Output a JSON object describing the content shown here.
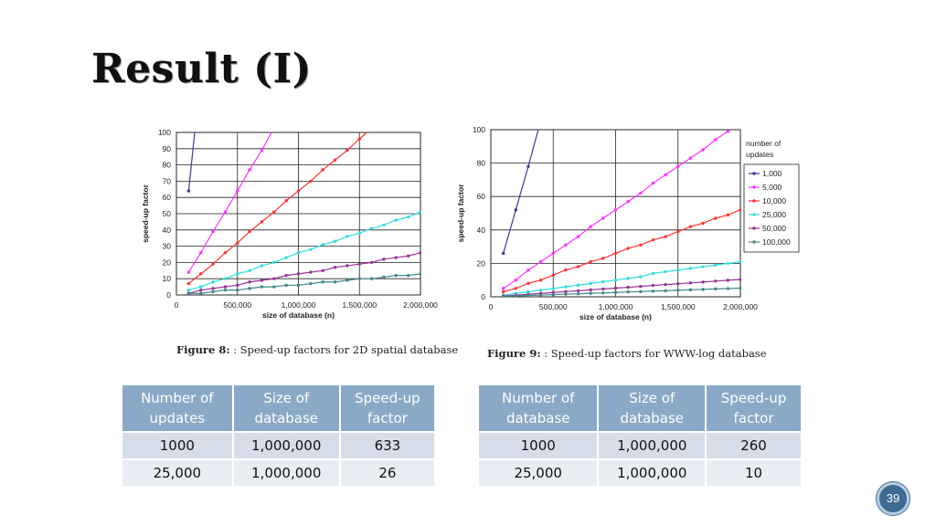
{
  "slide": {
    "title": "Result (I)",
    "page_number": "39"
  },
  "figure8": {
    "caption_bold": "Figure 8:",
    "caption_text": ": Speed-up factors for 2D spatial database"
  },
  "figure9": {
    "caption_bold": "Figure 9:",
    "caption_text": ": Speed-up factors for WWW-log database"
  },
  "chart_data": [
    {
      "type": "line",
      "xlabel": "size of database (n)",
      "ylabel": "speed-up factor",
      "xlim": [
        0,
        2000000
      ],
      "ylim": [
        0,
        100
      ],
      "xticks": [
        0,
        500000,
        1000000,
        1500000,
        2000000
      ],
      "xtick_labels": [
        "0",
        "500,000",
        "1,000,000",
        "1,500,000",
        "2,000,000"
      ],
      "yticks": [
        0,
        10,
        20,
        30,
        40,
        50,
        60,
        70,
        80,
        90,
        100
      ],
      "ytick_labels": [
        "0",
        "10",
        "20",
        "30",
        "40",
        "50",
        "60",
        "70",
        "80",
        "90",
        "100"
      ],
      "grid": true,
      "series": [
        {
          "color": "#3b3b9a",
          "values": [
            [
              100000,
              64
            ],
            [
              150000,
              100
            ]
          ]
        },
        {
          "color": "#ff33ff",
          "values": [
            [
              100000,
              14
            ],
            [
              200000,
              26
            ],
            [
              300000,
              39
            ],
            [
              400000,
              51
            ],
            [
              500000,
              64
            ],
            [
              600000,
              77
            ],
            [
              700000,
              89
            ],
            [
              780000,
              100
            ]
          ]
        },
        {
          "color": "#ff3333",
          "values": [
            [
              100000,
              7
            ],
            [
              200000,
              13
            ],
            [
              300000,
              19
            ],
            [
              400000,
              26
            ],
            [
              500000,
              32
            ],
            [
              600000,
              39
            ],
            [
              700000,
              45
            ],
            [
              800000,
              51
            ],
            [
              900000,
              58
            ],
            [
              1000000,
              64
            ],
            [
              1100000,
              70
            ],
            [
              1200000,
              77
            ],
            [
              1300000,
              83
            ],
            [
              1400000,
              89
            ],
            [
              1500000,
              96
            ],
            [
              1560000,
              100
            ]
          ]
        },
        {
          "color": "#33dddd",
          "values": [
            [
              100000,
              3
            ],
            [
              200000,
              5
            ],
            [
              300000,
              8
            ],
            [
              400000,
              10
            ],
            [
              500000,
              13
            ],
            [
              600000,
              15
            ],
            [
              700000,
              18
            ],
            [
              800000,
              20
            ],
            [
              900000,
              23
            ],
            [
              1000000,
              26
            ],
            [
              1100000,
              28
            ],
            [
              1200000,
              31
            ],
            [
              1300000,
              33
            ],
            [
              1400000,
              36
            ],
            [
              1500000,
              38
            ],
            [
              1600000,
              41
            ],
            [
              1700000,
              43
            ],
            [
              1800000,
              46
            ],
            [
              1900000,
              48
            ],
            [
              2000000,
              51
            ]
          ]
        },
        {
          "color": "#993399",
          "values": [
            [
              100000,
              1
            ],
            [
              200000,
              3
            ],
            [
              300000,
              4
            ],
            [
              400000,
              5
            ],
            [
              500000,
              6
            ],
            [
              600000,
              8
            ],
            [
              700000,
              9
            ],
            [
              800000,
              10
            ],
            [
              900000,
              12
            ],
            [
              1000000,
              13
            ],
            [
              1100000,
              14
            ],
            [
              1200000,
              15
            ],
            [
              1300000,
              17
            ],
            [
              1400000,
              18
            ],
            [
              1500000,
              19
            ],
            [
              1600000,
              20
            ],
            [
              1700000,
              22
            ],
            [
              1800000,
              23
            ],
            [
              1900000,
              24
            ],
            [
              2000000,
              26
            ]
          ]
        },
        {
          "color": "#448888",
          "values": [
            [
              100000,
              1
            ],
            [
              200000,
              1
            ],
            [
              300000,
              2
            ],
            [
              400000,
              3
            ],
            [
              500000,
              3
            ],
            [
              600000,
              4
            ],
            [
              700000,
              5
            ],
            [
              800000,
              5
            ],
            [
              900000,
              6
            ],
            [
              1000000,
              6
            ],
            [
              1100000,
              7
            ],
            [
              1200000,
              8
            ],
            [
              1300000,
              8
            ],
            [
              1400000,
              9
            ],
            [
              1500000,
              10
            ],
            [
              1600000,
              10
            ],
            [
              1700000,
              11
            ],
            [
              1800000,
              12
            ],
            [
              1900000,
              12
            ],
            [
              2000000,
              13
            ]
          ]
        }
      ]
    },
    {
      "type": "line",
      "xlabel": "size of database (n)",
      "ylabel": "speed-up factor",
      "xlim": [
        0,
        2000000
      ],
      "ylim": [
        0,
        100
      ],
      "xticks": [
        0,
        500000,
        1000000,
        1500000,
        2000000
      ],
      "xtick_labels": [
        "0",
        "500,000",
        "1,000,000",
        "1,500,000",
        "2,000,000"
      ],
      "yticks": [
        0,
        20,
        40,
        60,
        80,
        100
      ],
      "ytick_labels": [
        "0",
        "20",
        "40",
        "60",
        "80",
        "100"
      ],
      "grid": true,
      "legend_title": "number of updates",
      "legend_position": "right",
      "series": [
        {
          "name": "1,000",
          "color": "#3b3b9a",
          "values": [
            [
              100000,
              26
            ],
            [
              200000,
              52
            ],
            [
              300000,
              78
            ],
            [
              380000,
              100
            ]
          ]
        },
        {
          "name": "5,000",
          "color": "#ff33ff",
          "values": [
            [
              100000,
              5
            ],
            [
              200000,
              10
            ],
            [
              300000,
              16
            ],
            [
              400000,
              21
            ],
            [
              500000,
              26
            ],
            [
              600000,
              31
            ],
            [
              700000,
              36
            ],
            [
              800000,
              42
            ],
            [
              900000,
              47
            ],
            [
              1000000,
              52
            ],
            [
              1100000,
              57
            ],
            [
              1200000,
              62
            ],
            [
              1300000,
              68
            ],
            [
              1400000,
              73
            ],
            [
              1500000,
              78
            ],
            [
              1600000,
              83
            ],
            [
              1700000,
              88
            ],
            [
              1800000,
              94
            ],
            [
              1900000,
              99
            ],
            [
              1920000,
              100
            ]
          ]
        },
        {
          "name": "10,000",
          "color": "#ff3333",
          "values": [
            [
              100000,
              3
            ],
            [
              200000,
              5
            ],
            [
              300000,
              8
            ],
            [
              400000,
              10
            ],
            [
              500000,
              13
            ],
            [
              600000,
              16
            ],
            [
              700000,
              18
            ],
            [
              800000,
              21
            ],
            [
              900000,
              23
            ],
            [
              1000000,
              26
            ],
            [
              1100000,
              29
            ],
            [
              1200000,
              31
            ],
            [
              1300000,
              34
            ],
            [
              1400000,
              36
            ],
            [
              1500000,
              39
            ],
            [
              1600000,
              42
            ],
            [
              1700000,
              44
            ],
            [
              1800000,
              47
            ],
            [
              1900000,
              49
            ],
            [
              2000000,
              52
            ]
          ]
        },
        {
          "name": "25,000",
          "color": "#33dddd",
          "values": [
            [
              100000,
              1
            ],
            [
              200000,
              2
            ],
            [
              300000,
              3
            ],
            [
              400000,
              4
            ],
            [
              500000,
              5
            ],
            [
              600000,
              6
            ],
            [
              700000,
              7
            ],
            [
              800000,
              8
            ],
            [
              900000,
              9
            ],
            [
              1000000,
              10
            ],
            [
              1100000,
              11
            ],
            [
              1200000,
              12
            ],
            [
              1300000,
              14
            ],
            [
              1400000,
              15
            ],
            [
              1500000,
              16
            ],
            [
              1600000,
              17
            ],
            [
              1700000,
              18
            ],
            [
              1800000,
              19
            ],
            [
              1900000,
              20
            ],
            [
              2000000,
              21
            ]
          ]
        },
        {
          "name": "50,000",
          "color": "#993399",
          "values": [
            [
              100000,
              0.5
            ],
            [
              200000,
              1
            ],
            [
              300000,
              1.5
            ],
            [
              400000,
              2
            ],
            [
              500000,
              2.6
            ],
            [
              600000,
              3.1
            ],
            [
              700000,
              3.6
            ],
            [
              800000,
              4.2
            ],
            [
              900000,
              4.7
            ],
            [
              1000000,
              5.2
            ],
            [
              1100000,
              5.7
            ],
            [
              1200000,
              6.2
            ],
            [
              1300000,
              6.8
            ],
            [
              1400000,
              7.3
            ],
            [
              1500000,
              7.8
            ],
            [
              1600000,
              8.3
            ],
            [
              1700000,
              8.8
            ],
            [
              1800000,
              9.4
            ],
            [
              1900000,
              9.9
            ],
            [
              2000000,
              10.4
            ]
          ]
        },
        {
          "name": "100,000",
          "color": "#448888",
          "values": [
            [
              100000,
              0.3
            ],
            [
              200000,
              0.5
            ],
            [
              300000,
              0.8
            ],
            [
              400000,
              1
            ],
            [
              500000,
              1.3
            ],
            [
              600000,
              1.6
            ],
            [
              700000,
              1.8
            ],
            [
              800000,
              2.1
            ],
            [
              900000,
              2.3
            ],
            [
              1000000,
              2.6
            ],
            [
              1100000,
              2.9
            ],
            [
              1200000,
              3.1
            ],
            [
              1300000,
              3.4
            ],
            [
              1400000,
              3.6
            ],
            [
              1500000,
              3.9
            ],
            [
              1600000,
              4.2
            ],
            [
              1700000,
              4.4
            ],
            [
              1800000,
              4.7
            ],
            [
              1900000,
              4.9
            ],
            [
              2000000,
              5.2
            ]
          ]
        }
      ]
    }
  ],
  "table_left": {
    "headers": [
      "Number of updates",
      "Size of database",
      "Speed-up factor"
    ],
    "rows": [
      [
        "1000",
        "1,000,000",
        "633"
      ],
      [
        "25,000",
        "1,000,000",
        "26"
      ]
    ]
  },
  "table_right": {
    "headers": [
      "Number of database",
      "Size of database",
      "Speed-up factor"
    ],
    "rows": [
      [
        "1000",
        "1,000,000",
        "260"
      ],
      [
        "25,000",
        "1,000,000",
        "10"
      ]
    ]
  }
}
